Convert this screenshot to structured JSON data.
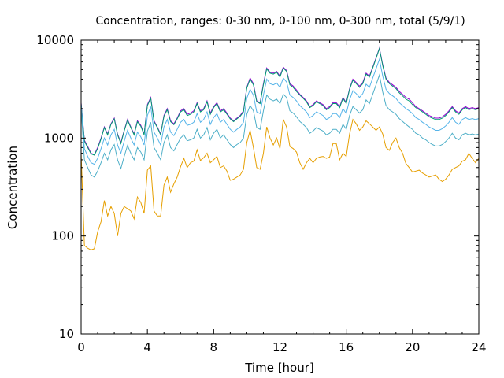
{
  "chart_data": {
    "type": "line",
    "title": "Concentration, ranges: 0-30 nm, 0-100 nm, 0-300 nm, total (5/9/1)",
    "xlabel": "Time [hour]",
    "ylabel": "Concentration",
    "xlim": [
      0,
      24
    ],
    "ylim": [
      10,
      10000
    ],
    "yscale": "log",
    "grid": false,
    "xticks": [
      0,
      4,
      8,
      12,
      16,
      20,
      24
    ],
    "xtick_labels": [
      "0",
      "4",
      "8",
      "12",
      "16",
      "20",
      "24"
    ],
    "yticks": [
      10,
      100,
      1000,
      10000
    ],
    "ytick_labels": [
      "10",
      "100",
      "1000",
      "10000"
    ],
    "x": [
      0,
      0.2,
      0.4,
      0.6,
      0.8,
      1,
      1.2,
      1.4,
      1.6,
      1.8,
      2,
      2.2,
      2.4,
      2.6,
      2.8,
      3,
      3.2,
      3.4,
      3.6,
      3.8,
      4,
      4.2,
      4.4,
      4.6,
      4.8,
      5,
      5.2,
      5.4,
      5.6,
      5.8,
      6,
      6.2,
      6.4,
      6.6,
      6.8,
      7,
      7.2,
      7.4,
      7.6,
      7.8,
      8,
      8.2,
      8.4,
      8.6,
      8.8,
      9,
      9.2,
      9.4,
      9.6,
      9.8,
      10,
      10.2,
      10.4,
      10.6,
      10.8,
      11,
      11.2,
      11.4,
      11.6,
      11.8,
      12,
      12.2,
      12.4,
      12.6,
      12.8,
      13,
      13.2,
      13.4,
      13.6,
      13.8,
      14,
      14.2,
      14.4,
      14.6,
      14.8,
      15,
      15.2,
      15.4,
      15.6,
      15.8,
      16,
      16.2,
      16.4,
      16.6,
      16.8,
      17,
      17.2,
      17.4,
      17.6,
      17.8,
      18,
      18.2,
      18.4,
      18.6,
      18.8,
      19,
      19.2,
      19.4,
      19.6,
      19.8,
      20,
      20.2,
      20.4,
      20.6,
      20.8,
      21,
      21.2,
      21.4,
      21.6,
      21.8,
      22,
      22.2,
      22.4,
      22.6,
      22.8,
      23,
      23.2,
      23.4,
      23.6,
      23.8,
      24
    ],
    "series": [
      {
        "color": "#9400d3",
        "values": [
          2300,
          950,
          820,
          700,
          680,
          800,
          1000,
          1300,
          1100,
          1400,
          1600,
          1100,
          900,
          1200,
          1550,
          1300,
          1100,
          1500,
          1350,
          1100,
          2200,
          2600,
          1500,
          1300,
          1100,
          1700,
          2000,
          1500,
          1400,
          1600,
          1900,
          2000,
          1750,
          1800,
          1900,
          2300,
          1900,
          2000,
          2400,
          1800,
          2100,
          2300,
          1900,
          2000,
          1800,
          1600,
          1500,
          1600,
          1700,
          1900,
          3300,
          4100,
          3600,
          2400,
          2300,
          3600,
          5200,
          4700,
          4600,
          4800,
          4300,
          5300,
          4900,
          3600,
          3400,
          3100,
          2800,
          2600,
          2400,
          2100,
          2200,
          2400,
          2300,
          2200,
          2000,
          2100,
          2300,
          2300,
          2100,
          2600,
          2300,
          3200,
          4000,
          3700,
          3400,
          3700,
          4600,
          4300,
          5300,
          6600,
          8300,
          5600,
          4100,
          3700,
          3500,
          3300,
          3000,
          2800,
          2600,
          2500,
          2300,
          2100,
          2000,
          1900,
          1800,
          1700,
          1650,
          1600,
          1600,
          1650,
          1750,
          1900,
          2100,
          1900,
          1800,
          2000,
          2100,
          2000,
          2050,
          2000,
          2050
        ]
      },
      {
        "color": "#009e73",
        "values": [
          2250,
          930,
          800,
          690,
          670,
          780,
          980,
          1280,
          1080,
          1380,
          1570,
          1080,
          880,
          1180,
          1520,
          1280,
          1080,
          1470,
          1320,
          1080,
          2150,
          2550,
          1470,
          1280,
          1080,
          1670,
          1950,
          1470,
          1370,
          1570,
          1850,
          1950,
          1700,
          1750,
          1850,
          2250,
          1850,
          1950,
          2350,
          1750,
          2050,
          2250,
          1850,
          1950,
          1750,
          1570,
          1470,
          1570,
          1670,
          1850,
          3250,
          4000,
          3500,
          2350,
          2250,
          3500,
          5100,
          4600,
          4500,
          4700,
          4200,
          5200,
          4800,
          3500,
          3300,
          3000,
          2750,
          2550,
          2350,
          2050,
          2150,
          2350,
          2250,
          2150,
          1950,
          2050,
          2250,
          2250,
          2050,
          2550,
          2250,
          3150,
          3900,
          3600,
          3300,
          3600,
          4500,
          4200,
          5200,
          6500,
          8200,
          5500,
          4000,
          3600,
          3400,
          3200,
          2900,
          2700,
          2500,
          2400,
          2200,
          2050,
          1950,
          1850,
          1750,
          1650,
          1600,
          1550,
          1550,
          1600,
          1700,
          1850,
          2050,
          1850,
          1750,
          1950,
          2050,
          1950,
          2000,
          1950,
          2000
        ]
      },
      {
        "color": "#56b4e9",
        "values": [
          2200,
          780,
          650,
          560,
          540,
          620,
          780,
          1000,
          850,
          1080,
          1230,
          850,
          700,
          930,
          1200,
          1000,
          850,
          1150,
          1030,
          850,
          1700,
          2100,
          1150,
          1000,
          850,
          1300,
          1550,
          1150,
          1060,
          1230,
          1450,
          1550,
          1350,
          1380,
          1450,
          1780,
          1450,
          1550,
          1850,
          1380,
          1620,
          1780,
          1450,
          1550,
          1380,
          1230,
          1150,
          1230,
          1300,
          1450,
          2550,
          3150,
          2750,
          1850,
          1780,
          2750,
          4000,
          3600,
          3500,
          3650,
          3300,
          4100,
          3750,
          2750,
          2600,
          2400,
          2150,
          2000,
          1850,
          1620,
          1700,
          1850,
          1780,
          1700,
          1550,
          1620,
          1780,
          1780,
          1620,
          2000,
          1780,
          2450,
          3050,
          2850,
          2600,
          2850,
          3550,
          3300,
          4100,
          5100,
          6400,
          4300,
          3150,
          2850,
          2700,
          2550,
          2300,
          2150,
          2000,
          1900,
          1780,
          1620,
          1550,
          1450,
          1380,
          1300,
          1250,
          1200,
          1200,
          1250,
          1330,
          1450,
          1620,
          1450,
          1380,
          1550,
          1620,
          1550,
          1580,
          1550,
          1580
        ]
      },
      {
        "color": "#4eafc8",
        "values": [
          2000,
          600,
          500,
          420,
          400,
          460,
          560,
          700,
          600,
          760,
          860,
          600,
          490,
          650,
          840,
          700,
          600,
          800,
          720,
          600,
          1180,
          1450,
          800,
          700,
          600,
          900,
          1080,
          800,
          740,
          860,
          1000,
          1080,
          940,
          960,
          1000,
          1230,
          1000,
          1080,
          1280,
          960,
          1120,
          1230,
          1000,
          1080,
          960,
          860,
          800,
          860,
          900,
          1000,
          1750,
          2150,
          1900,
          1280,
          1230,
          1900,
          2750,
          2500,
          2400,
          2500,
          2250,
          2800,
          2600,
          1900,
          1800,
          1650,
          1480,
          1380,
          1280,
          1120,
          1180,
          1280,
          1230,
          1180,
          1080,
          1120,
          1230,
          1230,
          1120,
          1380,
          1230,
          1700,
          2100,
          1950,
          1800,
          1950,
          2450,
          2250,
          2800,
          3500,
          4400,
          2950,
          2150,
          1950,
          1850,
          1750,
          1580,
          1480,
          1380,
          1300,
          1230,
          1120,
          1080,
          1000,
          960,
          900,
          860,
          830,
          830,
          860,
          920,
          1000,
          1120,
          1000,
          960,
          1080,
          1120,
          1080,
          1100,
          1080,
          1100
        ]
      },
      {
        "color": "#e69f00",
        "values": [
          700,
          80,
          75,
          72,
          74,
          110,
          140,
          230,
          160,
          200,
          170,
          100,
          170,
          200,
          190,
          180,
          150,
          250,
          220,
          170,
          470,
          520,
          180,
          160,
          160,
          330,
          400,
          280,
          340,
          400,
          510,
          620,
          500,
          560,
          580,
          760,
          590,
          630,
          700,
          560,
          600,
          650,
          500,
          520,
          460,
          370,
          380,
          400,
          420,
          480,
          900,
          1200,
          800,
          500,
          480,
          700,
          1300,
          1000,
          850,
          1000,
          780,
          1550,
          1300,
          820,
          780,
          720,
          560,
          480,
          560,
          620,
          560,
          620,
          640,
          650,
          620,
          640,
          880,
          880,
          600,
          700,
          650,
          1100,
          1550,
          1400,
          1200,
          1300,
          1500,
          1400,
          1300,
          1200,
          1300,
          1100,
          800,
          750,
          900,
          1000,
          800,
          700,
          550,
          500,
          450,
          460,
          470,
          440,
          420,
          400,
          410,
          420,
          380,
          360,
          380,
          420,
          480,
          500,
          520,
          580,
          600,
          700,
          620,
          560,
          620
        ]
      }
    ]
  }
}
